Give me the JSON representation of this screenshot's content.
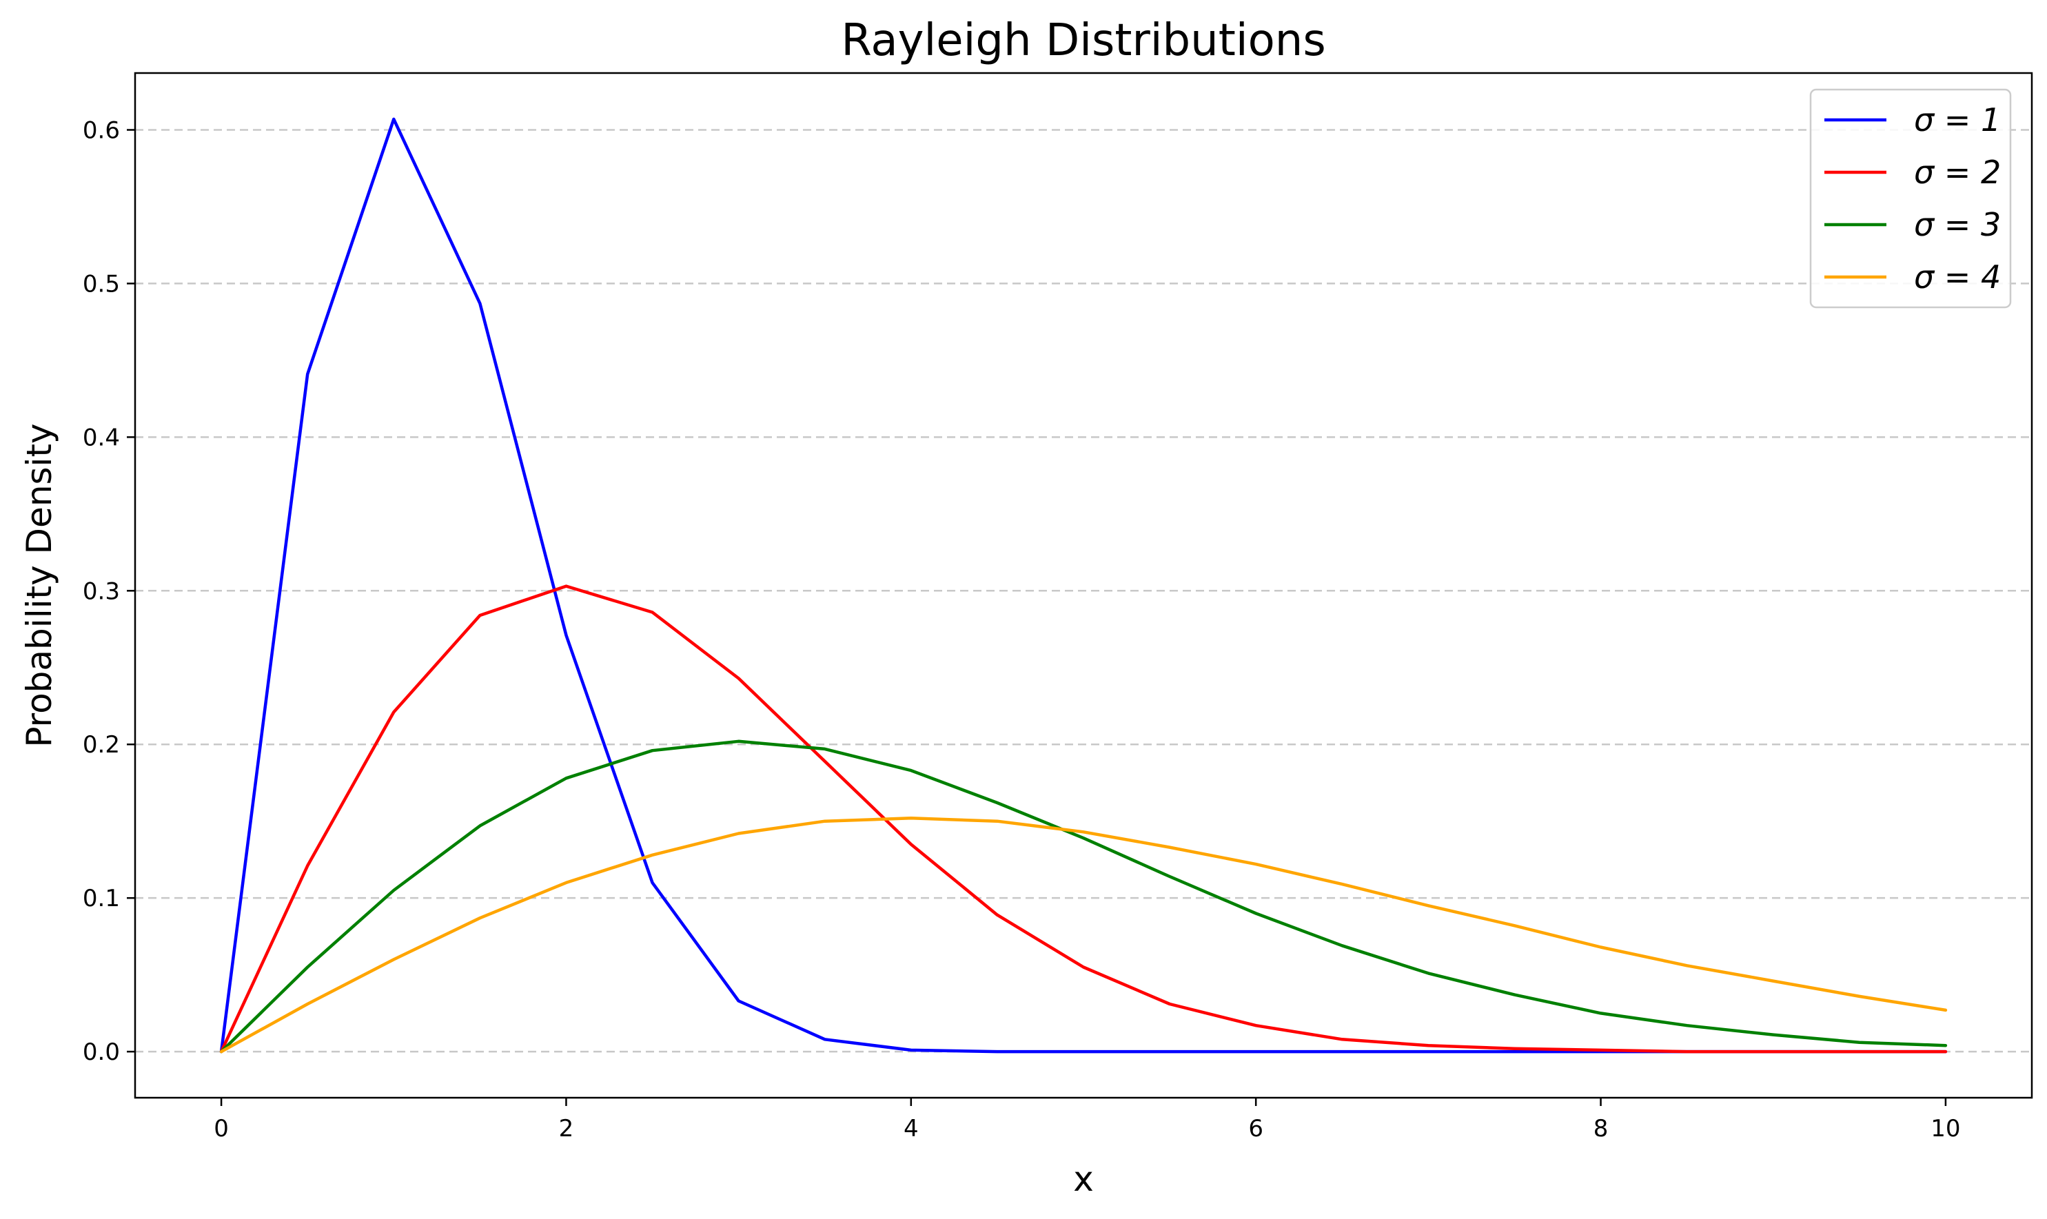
{
  "chart_data": {
    "type": "line",
    "title": "Rayleigh Distributions",
    "xlabel": "x",
    "ylabel": "Probability Density",
    "xlim": [
      -0.5,
      10.5
    ],
    "ylim": [
      -0.03,
      0.637
    ],
    "xticks": [
      0,
      2,
      4,
      6,
      8,
      10
    ],
    "xtick_labels": [
      "0",
      "2",
      "4",
      "6",
      "8",
      "10"
    ],
    "yticks": [
      0.0,
      0.1,
      0.2,
      0.3,
      0.4,
      0.5,
      0.6
    ],
    "ytick_labels": [
      "0.0",
      "0.1",
      "0.2",
      "0.3",
      "0.4",
      "0.5",
      "0.6"
    ],
    "grid": "y-dashed",
    "legend_position": "top-right",
    "x": [
      0,
      0.5,
      1,
      1.5,
      2,
      2.5,
      3,
      3.5,
      4,
      4.5,
      5,
      5.5,
      6,
      6.5,
      7,
      7.5,
      8,
      8.5,
      9,
      9.5,
      10
    ],
    "series": [
      {
        "name": "σ = 1",
        "color": "#0000ff",
        "values": [
          0.0,
          0.441,
          0.607,
          0.487,
          0.271,
          0.11,
          0.033,
          0.008,
          0.001,
          0.0,
          0.0,
          0.0,
          0.0,
          0.0,
          0.0,
          0.0,
          0.0,
          0.0,
          0.0,
          0.0,
          0.0
        ]
      },
      {
        "name": "σ = 2",
        "color": "#ff0000",
        "values": [
          0.0,
          0.121,
          0.221,
          0.284,
          0.303,
          0.286,
          0.243,
          0.189,
          0.135,
          0.089,
          0.055,
          0.031,
          0.017,
          0.008,
          0.004,
          0.002,
          0.001,
          0.0,
          0.0,
          0.0,
          0.0
        ]
      },
      {
        "name": "σ = 3",
        "color": "#008000",
        "values": [
          0.0,
          0.055,
          0.105,
          0.147,
          0.178,
          0.196,
          0.202,
          0.197,
          0.183,
          0.162,
          0.139,
          0.114,
          0.09,
          0.069,
          0.051,
          0.037,
          0.025,
          0.017,
          0.011,
          0.006,
          0.004
        ]
      },
      {
        "name": "σ = 4",
        "color": "#ffa500",
        "values": [
          0.0,
          0.031,
          0.06,
          0.087,
          0.11,
          0.128,
          0.142,
          0.15,
          0.152,
          0.15,
          0.143,
          0.133,
          0.122,
          0.109,
          0.095,
          0.082,
          0.068,
          0.056,
          0.046,
          0.036,
          0.027
        ]
      }
    ]
  }
}
